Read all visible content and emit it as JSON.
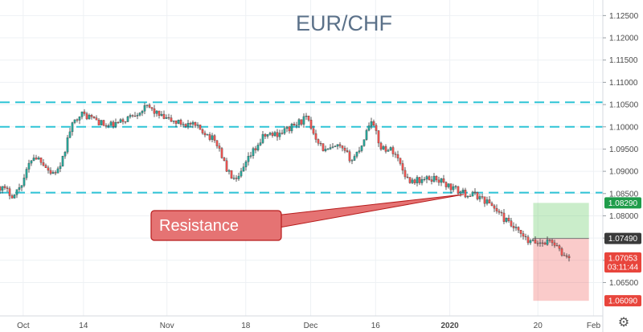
{
  "chart_data": {
    "type": "candlestick",
    "title": "EUR/CHF",
    "price_axis": {
      "ticks": [
        "1.12500",
        "1.12000",
        "1.11500",
        "1.11000",
        "1.10500",
        "1.10000",
        "1.09500",
        "1.09000",
        "1.08500",
        "1.08000",
        "1.07500",
        "1.07000",
        "1.06500"
      ],
      "range": [
        1.0575,
        1.1285
      ]
    },
    "time_axis": {
      "range": [
        "2019-09-26",
        "2020-02-03"
      ],
      "ticks": [
        {
          "label": "Oct",
          "date": "2019-10-01"
        },
        {
          "label": "14",
          "date": "2019-10-14"
        },
        {
          "label": "Nov",
          "date": "2019-11-01"
        },
        {
          "label": "18",
          "date": "2019-11-18"
        },
        {
          "label": "Dec",
          "date": "2019-12-02"
        },
        {
          "label": "16",
          "date": "2019-12-16"
        },
        {
          "label": "2020",
          "date": "2020-01-01"
        },
        {
          "label": "20",
          "date": "2020-01-20"
        },
        {
          "label": "Feb",
          "date": "2020-02-01"
        }
      ]
    },
    "series_path": [
      [
        "2019-09-26",
        1.0865
      ],
      [
        "2019-09-29",
        1.0845
      ],
      [
        "2019-10-01",
        1.088
      ],
      [
        "2019-10-03",
        1.0935
      ],
      [
        "2019-10-05",
        1.0925
      ],
      [
        "2019-10-07",
        1.0895
      ],
      [
        "2019-10-09",
        1.0905
      ],
      [
        "2019-10-11",
        1.099
      ],
      [
        "2019-10-13",
        1.103
      ],
      [
        "2019-10-16",
        1.102
      ],
      [
        "2019-10-19",
        1.1
      ],
      [
        "2019-10-22",
        1.101
      ],
      [
        "2019-10-25",
        1.103
      ],
      [
        "2019-10-28",
        1.1045
      ],
      [
        "2019-10-31",
        1.102
      ],
      [
        "2019-11-03",
        1.101
      ],
      [
        "2019-11-06",
        1.1005
      ],
      [
        "2019-11-09",
        1.099
      ],
      [
        "2019-11-12",
        1.096
      ],
      [
        "2019-11-14",
        1.09
      ],
      [
        "2019-11-16",
        1.0875
      ],
      [
        "2019-11-19",
        1.0935
      ],
      [
        "2019-11-22",
        1.098
      ],
      [
        "2019-11-25",
        1.0985
      ],
      [
        "2019-11-28",
        1.1
      ],
      [
        "2019-12-01",
        1.102
      ],
      [
        "2019-12-03",
        1.098
      ],
      [
        "2019-12-05",
        1.0945
      ],
      [
        "2019-12-08",
        1.0955
      ],
      [
        "2019-12-11",
        1.0925
      ],
      [
        "2019-12-13",
        1.096
      ],
      [
        "2019-12-15",
        1.102
      ],
      [
        "2019-12-17",
        1.0955
      ],
      [
        "2019-12-20",
        1.0945
      ],
      [
        "2019-12-23",
        1.088
      ],
      [
        "2019-12-26",
        1.088
      ],
      [
        "2019-12-29",
        1.0885
      ],
      [
        "2020-01-01",
        1.0865
      ],
      [
        "2020-01-04",
        1.085
      ],
      [
        "2020-01-07",
        1.0845
      ],
      [
        "2020-01-10",
        1.0825
      ],
      [
        "2020-01-13",
        1.079
      ],
      [
        "2020-01-16",
        1.076
      ],
      [
        "2020-01-18",
        1.074
      ],
      [
        "2020-01-21",
        1.074
      ],
      [
        "2020-01-23",
        1.0745
      ],
      [
        "2020-01-25",
        1.0715
      ],
      [
        "2020-01-27",
        1.0705
      ]
    ],
    "horizontal_lines": [
      1.1055,
      1.1,
      1.0852
    ],
    "annotations": [
      {
        "text": "Resistance",
        "points_to": {
          "date": "2020-01-04",
          "price": 1.0848
        }
      }
    ],
    "position": {
      "from": "2020-01-19",
      "to": "2020-01-31",
      "entry": 1.0749,
      "target": 1.0829,
      "stop": 1.0609
    },
    "price_tags": [
      {
        "text": "1.08290",
        "price": 1.0829,
        "color": "#1f9c4a"
      },
      {
        "text": "1.07490",
        "price": 1.0749,
        "color": "#3a3a3a"
      },
      {
        "text": "1.07053",
        "price": 1.07053,
        "color": "#e8453c"
      },
      {
        "text": "03:11:44",
        "price": 1.06853,
        "color": "#e8453c"
      },
      {
        "text": "1.06090",
        "price": 1.0609,
        "color": "#e8453c"
      }
    ],
    "grid": true
  },
  "colors": {
    "up": "#26a69a",
    "down": "#ef5350",
    "wick": "#333333",
    "hline": "#2ec4d6",
    "title": "#5b7189",
    "callout_fill": "#e57373",
    "callout_stroke": "#b71c1c",
    "profit_zone": "rgba(102,204,102,0.35)",
    "loss_zone": "rgba(239,83,80,0.30)",
    "grid": "#eef1f4"
  },
  "ui": {
    "settings_icon": "gear-icon",
    "settings_glyph": "⚙"
  }
}
